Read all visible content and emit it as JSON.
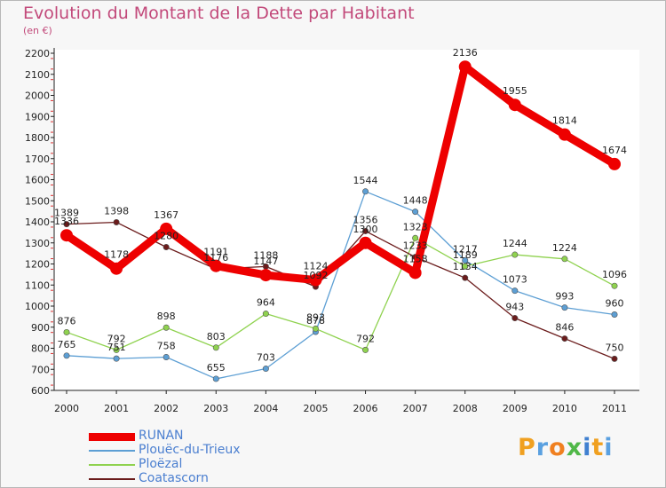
{
  "title": "Evolution du Montant de la Dette par Habitant",
  "subtitle": "(en €)",
  "logo": "Proxiti",
  "chart_data": {
    "type": "line",
    "x": [
      "2000",
      "2001",
      "2002",
      "2003",
      "2004",
      "2005",
      "2006",
      "2007",
      "2008",
      "2009",
      "2010",
      "2011"
    ],
    "ylim": [
      600,
      2200
    ],
    "y_ticks": [
      600,
      700,
      800,
      900,
      1000,
      1100,
      1200,
      1300,
      1400,
      1500,
      1600,
      1700,
      1800,
      1900,
      2000,
      2100,
      2200
    ],
    "grid": false,
    "legend_position": "bottom-left",
    "series": [
      {
        "name": "RUNAN",
        "color": "#ee0000",
        "values": [
          1336,
          1178,
          1367,
          1191,
          1147,
          1124,
          1300,
          1158,
          2136,
          1955,
          1814,
          1674
        ]
      },
      {
        "name": "Plouëc-du-Trieux",
        "color": "#5d9fd4",
        "values": [
          765,
          751,
          758,
          655,
          703,
          878,
          1544,
          1448,
          1217,
          1073,
          993,
          960
        ]
      },
      {
        "name": "Ploëzal",
        "color": "#8fd24f",
        "values": [
          876,
          792,
          898,
          803,
          964,
          893,
          792,
          1323,
          1189,
          1244,
          1224,
          1096
        ]
      },
      {
        "name": "Coatascorn",
        "color": "#6b1c1c",
        "values": [
          1389,
          1398,
          1280,
          1176,
          1188,
          1092,
          1356,
          1233,
          1134,
          943,
          846,
          750
        ]
      }
    ]
  }
}
